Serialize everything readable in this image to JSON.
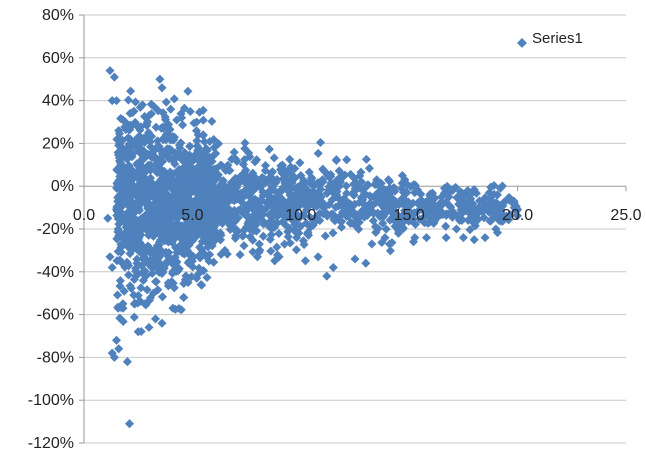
{
  "chart_data": {
    "type": "scatter",
    "title": "",
    "xlabel": "",
    "ylabel": "",
    "xlim": [
      0,
      25
    ],
    "ylim": [
      -1.2,
      0.8
    ],
    "x_ticks": [
      0,
      5,
      10,
      15,
      20,
      25
    ],
    "x_tick_labels": [
      "0.0",
      "5.0",
      "10.0",
      "15.0",
      "20.0",
      "25.0"
    ],
    "y_ticks": [
      0.8,
      0.6,
      0.4,
      0.2,
      0,
      -0.2,
      -0.4,
      -0.6,
      -0.8,
      -1.0,
      -1.2
    ],
    "y_tick_labels": [
      "80%",
      "60%",
      "40%",
      "20%",
      "0%",
      "-20%",
      "-40%",
      "-60%",
      "-80%",
      "-100%",
      "-120%"
    ],
    "grid": "horizontal",
    "legend_position": "top-right",
    "series": [
      {
        "name": "Series1",
        "color": "#4f81bd",
        "marker": "diamond",
        "points": [
          [
            1.2,
            0.54
          ],
          [
            1.4,
            0.51
          ],
          [
            1.3,
            0.4
          ],
          [
            1.5,
            0.4
          ],
          [
            3.5,
            0.5
          ],
          [
            3.6,
            0.46
          ],
          [
            1.6,
            0.26
          ],
          [
            1.7,
            0.18
          ],
          [
            1.1,
            -0.15
          ],
          [
            1.2,
            -0.33
          ],
          [
            1.3,
            -0.38
          ],
          [
            1.3,
            -0.78
          ],
          [
            1.4,
            -0.8
          ],
          [
            1.5,
            -0.72
          ],
          [
            1.6,
            -0.76
          ],
          [
            2.0,
            -0.82
          ],
          [
            1.8,
            -0.57
          ],
          [
            2.1,
            -1.11
          ],
          [
            2.5,
            -0.68
          ],
          [
            3.0,
            -0.66
          ],
          [
            3.3,
            -0.62
          ],
          [
            3.6,
            -0.64
          ],
          [
            4.1,
            -0.57
          ],
          [
            4.6,
            -0.52
          ],
          [
            5.2,
            -0.43
          ],
          [
            2.8,
            -0.55
          ],
          [
            3.2,
            -0.5
          ],
          [
            4.0,
            0.36
          ],
          [
            4.5,
            0.32
          ],
          [
            5.2,
            0.3
          ],
          [
            5.5,
            0.24
          ],
          [
            6.0,
            0.18
          ],
          [
            10.0,
            0.05
          ],
          [
            10.5,
            0.04
          ],
          [
            11.0,
            0.03
          ],
          [
            12.8,
            0.02
          ],
          [
            13.5,
            0.03
          ],
          [
            10.8,
            -0.33
          ],
          [
            11.2,
            -0.42
          ],
          [
            11.5,
            -0.38
          ],
          [
            12.5,
            -0.34
          ],
          [
            13.0,
            -0.36
          ],
          [
            14.5,
            -0.22
          ],
          [
            15.2,
            -0.26
          ],
          [
            15.8,
            -0.24
          ],
          [
            16.7,
            -0.24
          ],
          [
            17.5,
            -0.24
          ],
          [
            18.0,
            -0.25
          ],
          [
            18.5,
            -0.24
          ],
          [
            19.0,
            -0.2
          ],
          [
            19.5,
            -0.14
          ],
          [
            20.0,
            -0.11
          ],
          [
            16.5,
            -0.05
          ],
          [
            17.0,
            -0.02
          ],
          [
            18.7,
            -0.03
          ],
          [
            19.2,
            -0.01
          ],
          [
            9.0,
            -0.33
          ],
          [
            8.0,
            -0.33
          ],
          [
            7.2,
            -0.32
          ],
          [
            6.5,
            -0.3
          ],
          [
            5.0,
            -0.35
          ],
          [
            4.8,
            -0.45
          ],
          [
            2.2,
            -0.3
          ],
          [
            2.4,
            -0.42
          ],
          [
            1.9,
            0.3
          ],
          [
            2.3,
            0.35
          ],
          [
            2.7,
            0.38
          ],
          [
            3.0,
            0.33
          ],
          [
            2.0,
            -0.05
          ],
          [
            2.0,
            0.05
          ],
          [
            2.2,
            -0.2
          ]
        ]
      }
    ]
  }
}
